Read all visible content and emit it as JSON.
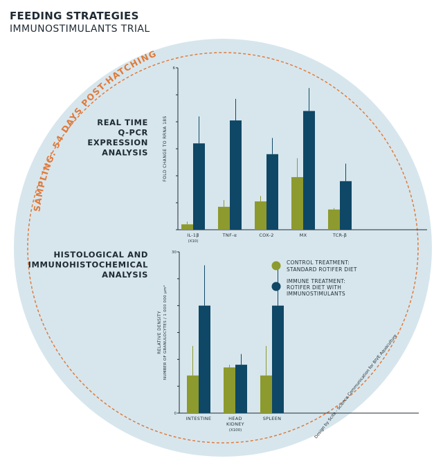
{
  "header": {
    "title": "FEEDING STRATEGIES",
    "subtitle": "IMMUNOSTIMULANTS TRIAL"
  },
  "sampling_label": "SAMPLING: 54 DAYS POST-HATCHING",
  "credit": "Design by Scite - Science Communication for BIVE Aquaculture",
  "colors": {
    "circle": "#d7e6ed",
    "dashed": "#e07a3a",
    "control": "#8d9a2e",
    "immune": "#0f4766",
    "text": "#1f2a33"
  },
  "legend": {
    "control_line1": "CONTROL TREATMENT:",
    "control_line2": "STANDARD ROTIFER DIET",
    "immune_line1": "IMMUNE TREATMENT:",
    "immune_line2": "ROTIFER DIET WITH",
    "immune_line3": "IMMUNOSTIMULANTS"
  },
  "chart_data": [
    {
      "type": "bar",
      "section_title": [
        "REAL TIME",
        "Q-PCR",
        "EXPRESSION",
        "ANALYSIS"
      ],
      "ylabel": "FOLD CHANGE TO RRNA 18S",
      "ylim": [
        0,
        6
      ],
      "yticks": [
        "6"
      ],
      "categories": [
        "IL-1β",
        "TNF-α",
        "COX-2",
        "MX",
        "TCR-β"
      ],
      "category_notes": [
        "(X10)",
        "",
        "",
        "",
        ""
      ],
      "series": [
        {
          "key": "control",
          "values": [
            0.2,
            0.85,
            1.05,
            1.95,
            0.75
          ],
          "error": [
            0.1,
            0.25,
            0.2,
            0.7,
            0.05
          ]
        },
        {
          "key": "immune",
          "values": [
            3.2,
            4.05,
            2.8,
            4.4,
            1.8
          ],
          "error": [
            1.0,
            0.8,
            0.6,
            0.85,
            0.65
          ]
        }
      ]
    },
    {
      "type": "bar",
      "section_title": [
        "HISTOLOGICAL AND",
        "IMMUNOHISTOCHEMICAL",
        "ANALYSIS"
      ],
      "ylabel": "RELATIVE DENSITY",
      "ylabel2": "NUMBER OF GRANULOCYTES / 1 000 000 µm²",
      "ylim": [
        0,
        30
      ],
      "yticks": [
        "30",
        "0"
      ],
      "categories": [
        "INTESTINE",
        "HEAD KIDNEY",
        "SPLEEN"
      ],
      "category_notes": [
        "",
        "(X100)",
        ""
      ],
      "series": [
        {
          "key": "control",
          "values": [
            7,
            8.5,
            7
          ],
          "error": [
            5.5,
            0.5,
            5.5
          ]
        },
        {
          "key": "immune",
          "values": [
            20,
            9,
            20
          ],
          "error": [
            7.5,
            2,
            7.5
          ]
        }
      ]
    }
  ]
}
